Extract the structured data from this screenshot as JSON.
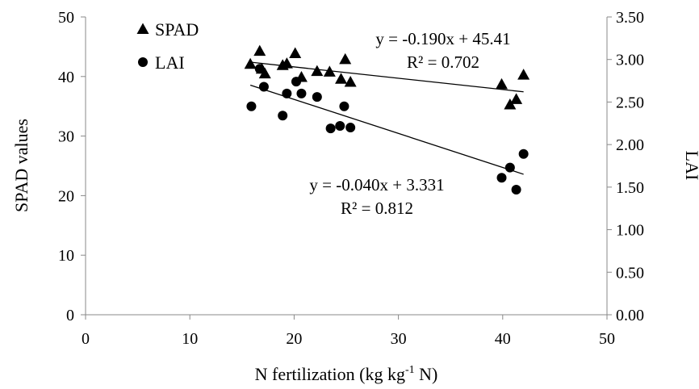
{
  "chart_data": {
    "type": "scatter",
    "xlabel": "N fertilization (kg kg",
    "xlabel_sup": "-1",
    "xlabel_tail": " N)",
    "ylabel": "SPAD values",
    "y2label": "LAI",
    "xlim": [
      0,
      50
    ],
    "ylim": [
      0,
      50
    ],
    "y2lim": [
      0,
      3.5
    ],
    "x_ticks": [
      "0",
      "10",
      "20",
      "30",
      "40",
      "50"
    ],
    "y_ticks": [
      "0",
      "10",
      "20",
      "30",
      "40",
      "50"
    ],
    "y2_ticks": [
      "0.00",
      "0.50",
      "1.00",
      "1.50",
      "2.00",
      "2.50",
      "3.00",
      "3.50"
    ],
    "grid": false,
    "legend": "top-left",
    "series": [
      {
        "name": "SPAD",
        "marker": "triangle",
        "axis": "left",
        "points": [
          {
            "x": 15.8,
            "y": 42.1
          },
          {
            "x": 16.7,
            "y": 44.3
          },
          {
            "x": 16.9,
            "y": 41.3
          },
          {
            "x": 17.2,
            "y": 40.5
          },
          {
            "x": 18.9,
            "y": 41.9
          },
          {
            "x": 19.3,
            "y": 42.2
          },
          {
            "x": 20.1,
            "y": 43.9
          },
          {
            "x": 20.7,
            "y": 39.9
          },
          {
            "x": 22.2,
            "y": 40.9
          },
          {
            "x": 23.4,
            "y": 40.8
          },
          {
            "x": 24.5,
            "y": 39.6
          },
          {
            "x": 24.9,
            "y": 42.9
          },
          {
            "x": 25.4,
            "y": 39.1
          },
          {
            "x": 39.9,
            "y": 38.7
          },
          {
            "x": 40.7,
            "y": 35.3
          },
          {
            "x": 41.3,
            "y": 36.2
          },
          {
            "x": 42.0,
            "y": 40.3
          }
        ],
        "trendline": {
          "slope": -0.19,
          "intercept": 45.41,
          "x_range": [
            15.8,
            42.0
          ]
        },
        "equation": "y = -0.190x + 45.41",
        "r2": "R² = 0.702"
      },
      {
        "name": "LAI",
        "marker": "circle",
        "axis": "right",
        "points": [
          {
            "x": 15.9,
            "y": 2.45
          },
          {
            "x": 16.7,
            "y": 2.89
          },
          {
            "x": 17.1,
            "y": 2.68
          },
          {
            "x": 18.9,
            "y": 2.34
          },
          {
            "x": 19.3,
            "y": 2.6
          },
          {
            "x": 20.2,
            "y": 2.74
          },
          {
            "x": 20.7,
            "y": 2.6
          },
          {
            "x": 22.2,
            "y": 2.56
          },
          {
            "x": 23.5,
            "y": 2.19
          },
          {
            "x": 24.4,
            "y": 2.22
          },
          {
            "x": 24.8,
            "y": 2.45
          },
          {
            "x": 25.4,
            "y": 2.2
          },
          {
            "x": 39.9,
            "y": 1.61
          },
          {
            "x": 40.7,
            "y": 1.73
          },
          {
            "x": 41.3,
            "y": 1.47
          },
          {
            "x": 42.0,
            "y": 1.89
          }
        ],
        "trendline": {
          "slope": -0.04,
          "intercept": 3.331,
          "x_range": [
            15.8,
            42.0
          ]
        },
        "equation": "y = -0.040x + 3.331",
        "r2": "R² = 0.812"
      }
    ]
  }
}
